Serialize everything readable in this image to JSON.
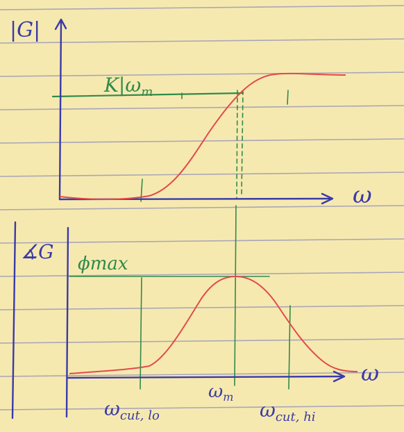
{
  "colors": {
    "paper": "#f6e9b0",
    "rule_line": "#8f8fb8",
    "axis_ink": "#3a3aa8",
    "guide_ink": "#2f8a4a",
    "curve_ink": "#e24a4a",
    "label_ink_blue": "#3a3aa8",
    "label_ink_green": "#2f8a4a"
  },
  "top_plot": {
    "y_label": "|G|",
    "x_label": "ω",
    "level_label": "K|ω",
    "level_label_sub": "m"
  },
  "bottom_plot": {
    "y_label": "∡G",
    "x_label": "ω",
    "peak_label": "ϕmax"
  },
  "freq_labels": {
    "cut_lo_main": "ω",
    "cut_lo_sub": "cut, lo",
    "m_main": "ω",
    "m_sub": "m",
    "cut_hi_main": "ω",
    "cut_hi_sub": "cut, hi"
  }
}
